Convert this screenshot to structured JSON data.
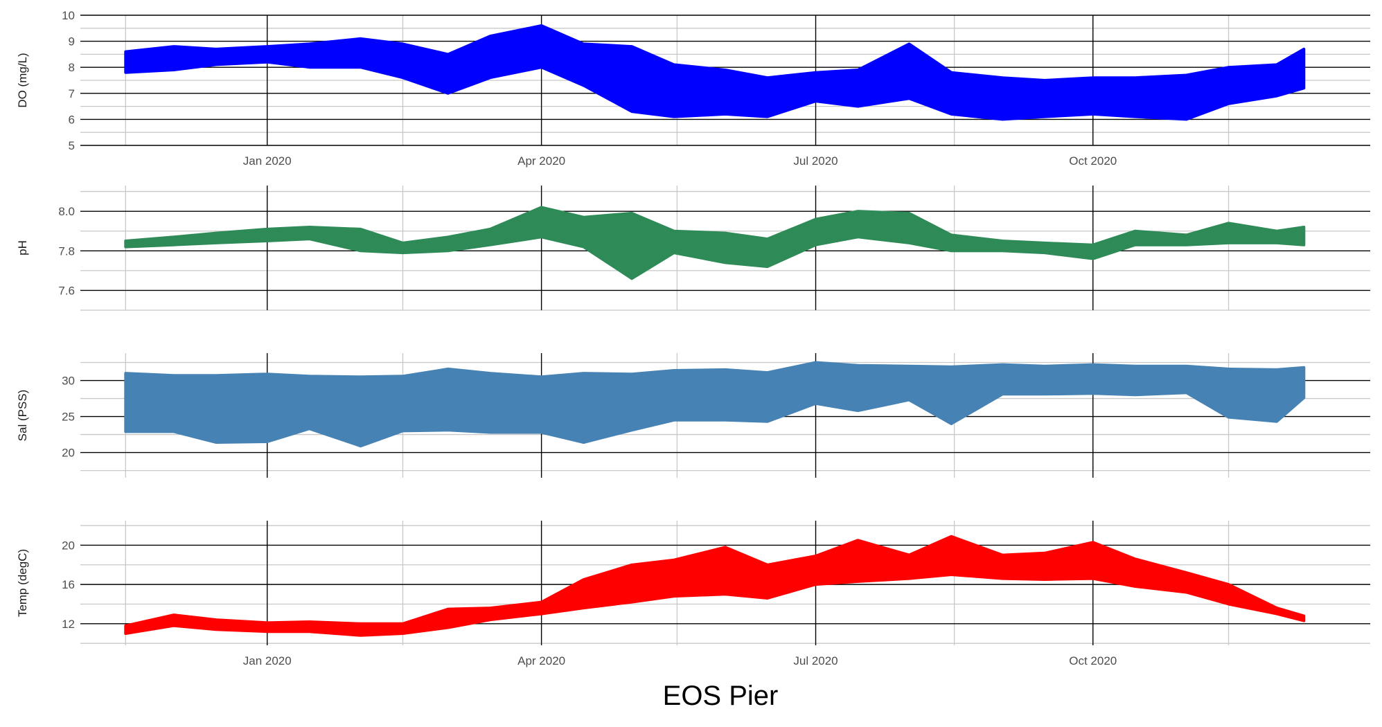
{
  "figure": {
    "xlabel": "EOS Pier"
  },
  "chart_data": [
    {
      "type": "line",
      "ylabel": "DO (mg/L)",
      "color": "#0000FF",
      "ylim": [
        5,
        10
      ],
      "yticks": [
        5,
        6,
        7,
        8,
        9,
        10
      ],
      "grid": true,
      "xlim": [
        "2019-10-31",
        "2021-01-01"
      ],
      "xticks": [
        {
          "date": "2020-01-01",
          "label": "Jan 2020"
        },
        {
          "date": "2020-04-01",
          "label": "Apr 2020"
        },
        {
          "date": "2020-07-01",
          "label": "Jul 2020"
        },
        {
          "date": "2020-10-01",
          "label": "Oct 2020"
        }
      ],
      "x": [
        "2019-11-15",
        "2019-12-01",
        "2019-12-15",
        "2020-01-01",
        "2020-01-15",
        "2020-02-01",
        "2020-02-15",
        "2020-03-01",
        "2020-03-15",
        "2020-04-01",
        "2020-04-15",
        "2020-05-01",
        "2020-05-15",
        "2020-06-01",
        "2020-06-15",
        "2020-07-01",
        "2020-07-15",
        "2020-08-01",
        "2020-08-15",
        "2020-09-01",
        "2020-09-15",
        "2020-10-01",
        "2020-10-15",
        "2020-11-01",
        "2020-11-15",
        "2020-12-01",
        "2020-12-10"
      ],
      "low": [
        7.8,
        7.9,
        8.1,
        8.2,
        8.0,
        8.0,
        7.6,
        7.0,
        7.6,
        8.0,
        7.3,
        6.3,
        6.1,
        6.2,
        6.1,
        6.7,
        6.5,
        6.8,
        6.2,
        6.0,
        6.1,
        6.2,
        6.1,
        6.0,
        6.6,
        6.9,
        7.2
      ],
      "high": [
        8.6,
        8.8,
        8.7,
        8.8,
        8.9,
        9.1,
        8.9,
        8.5,
        9.2,
        9.6,
        8.9,
        8.8,
        8.1,
        7.9,
        7.6,
        7.8,
        7.9,
        8.9,
        7.8,
        7.6,
        7.5,
        7.6,
        7.6,
        7.7,
        8.0,
        8.1,
        8.7
      ]
    },
    {
      "type": "line",
      "ylabel": "pH",
      "color": "#2E8B57",
      "ylim": [
        7.5,
        8.13
      ],
      "yticks": [
        7.6,
        7.8,
        8.0
      ],
      "ytick_labels": [
        "7.6",
        "7.8",
        "8.0"
      ],
      "grid": true,
      "xlim": [
        "2019-10-31",
        "2021-01-01"
      ],
      "xticks": [
        {
          "date": "2020-01-01",
          "label": ""
        },
        {
          "date": "2020-04-01",
          "label": ""
        },
        {
          "date": "2020-07-01",
          "label": ""
        },
        {
          "date": "2020-10-01",
          "label": ""
        }
      ],
      "x": [
        "2019-11-15",
        "2019-12-01",
        "2019-12-15",
        "2020-01-01",
        "2020-01-15",
        "2020-02-01",
        "2020-02-15",
        "2020-03-01",
        "2020-03-15",
        "2020-04-01",
        "2020-04-15",
        "2020-05-01",
        "2020-05-15",
        "2020-06-01",
        "2020-06-15",
        "2020-07-01",
        "2020-07-15",
        "2020-08-01",
        "2020-08-15",
        "2020-09-01",
        "2020-09-15",
        "2020-10-01",
        "2020-10-15",
        "2020-11-01",
        "2020-11-15",
        "2020-12-01",
        "2020-12-10"
      ],
      "low": [
        7.82,
        7.83,
        7.84,
        7.85,
        7.86,
        7.8,
        7.79,
        7.8,
        7.83,
        7.87,
        7.82,
        7.66,
        7.79,
        7.74,
        7.72,
        7.83,
        7.87,
        7.84,
        7.8,
        7.8,
        7.79,
        7.76,
        7.83,
        7.83,
        7.84,
        7.84,
        7.83
      ],
      "high": [
        7.85,
        7.87,
        7.89,
        7.91,
        7.92,
        7.91,
        7.84,
        7.87,
        7.91,
        8.02,
        7.97,
        7.99,
        7.9,
        7.89,
        7.86,
        7.96,
        8.0,
        7.99,
        7.88,
        7.85,
        7.84,
        7.83,
        7.9,
        7.88,
        7.94,
        7.9,
        7.92
      ]
    },
    {
      "type": "line",
      "ylabel": "Sal (PSS)",
      "color": "#4682B4",
      "ylim": [
        16.5,
        33.8
      ],
      "yticks": [
        20,
        25,
        30
      ],
      "grid": true,
      "xlim": [
        "2019-10-31",
        "2021-01-01"
      ],
      "xticks": [
        {
          "date": "2020-01-01",
          "label": ""
        },
        {
          "date": "2020-04-01",
          "label": ""
        },
        {
          "date": "2020-07-01",
          "label": ""
        },
        {
          "date": "2020-10-01",
          "label": ""
        }
      ],
      "x": [
        "2019-11-15",
        "2019-12-01",
        "2019-12-15",
        "2020-01-01",
        "2020-01-15",
        "2020-02-01",
        "2020-02-15",
        "2020-03-01",
        "2020-03-15",
        "2020-04-01",
        "2020-04-15",
        "2020-05-01",
        "2020-05-15",
        "2020-06-01",
        "2020-06-15",
        "2020-07-01",
        "2020-07-15",
        "2020-08-01",
        "2020-08-15",
        "2020-09-01",
        "2020-09-15",
        "2020-10-01",
        "2020-10-15",
        "2020-11-01",
        "2020-11-15",
        "2020-12-01",
        "2020-12-10"
      ],
      "low": [
        22.9,
        22.9,
        21.4,
        21.5,
        23.3,
        20.9,
        23.0,
        23.1,
        22.8,
        22.8,
        21.4,
        23.1,
        24.5,
        24.5,
        24.3,
        26.8,
        25.8,
        27.3,
        24.0,
        28.1,
        28.1,
        28.2,
        28.0,
        28.3,
        24.9,
        24.3,
        27.6
      ],
      "high": [
        31.0,
        30.7,
        30.7,
        30.9,
        30.6,
        30.5,
        30.6,
        31.6,
        31.0,
        30.5,
        31.0,
        30.9,
        31.4,
        31.5,
        31.1,
        32.5,
        32.1,
        32.0,
        31.9,
        32.2,
        32.0,
        32.2,
        32.0,
        32.0,
        31.6,
        31.5,
        31.8
      ]
    },
    {
      "type": "line",
      "ylabel": "Temp (degC)",
      "color": "#FF0000",
      "ylim": [
        9.8,
        22.5
      ],
      "yticks": [
        12,
        16,
        20
      ],
      "grid": true,
      "xlim": [
        "2019-10-31",
        "2021-01-01"
      ],
      "xticks": [
        {
          "date": "2020-01-01",
          "label": "Jan 2020"
        },
        {
          "date": "2020-04-01",
          "label": "Apr 2020"
        },
        {
          "date": "2020-07-01",
          "label": "Jul 2020"
        },
        {
          "date": "2020-10-01",
          "label": "Oct 2020"
        }
      ],
      "x": [
        "2019-11-15",
        "2019-12-01",
        "2019-12-15",
        "2020-01-01",
        "2020-01-15",
        "2020-02-01",
        "2020-02-15",
        "2020-03-01",
        "2020-03-15",
        "2020-04-01",
        "2020-04-15",
        "2020-05-01",
        "2020-05-15",
        "2020-06-01",
        "2020-06-15",
        "2020-07-01",
        "2020-07-15",
        "2020-08-01",
        "2020-08-15",
        "2020-09-01",
        "2020-09-15",
        "2020-10-01",
        "2020-10-15",
        "2020-11-01",
        "2020-11-15",
        "2020-12-01",
        "2020-12-10"
      ],
      "low": [
        11.0,
        11.8,
        11.4,
        11.2,
        11.2,
        10.8,
        11.0,
        11.6,
        12.4,
        13.0,
        13.6,
        14.2,
        14.8,
        15.0,
        14.6,
        16.0,
        16.3,
        16.6,
        17.0,
        16.6,
        16.5,
        16.6,
        15.8,
        15.2,
        14.0,
        13.0,
        12.3
      ],
      "high": [
        11.8,
        12.9,
        12.4,
        12.1,
        12.2,
        12.0,
        12.0,
        13.5,
        13.6,
        14.2,
        16.5,
        18.0,
        18.5,
        19.8,
        18.0,
        18.9,
        20.5,
        19.0,
        20.9,
        19.0,
        19.2,
        20.3,
        18.6,
        17.2,
        16.0,
        13.6,
        12.8
      ]
    }
  ]
}
